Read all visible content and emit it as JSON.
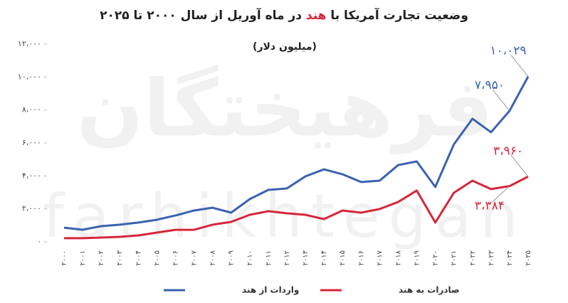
{
  "chart_data": {
    "type": "line",
    "title_parts": [
      "وضعیت تجارت آمریکا با",
      "هند",
      "در ماه آوریل از سال ۲۰۰۰ تا ۲۰۲۵"
    ],
    "subtitle": "(میلیون دلار)",
    "watermark": [
      "فرهیختگان",
      "farhikhtegan"
    ],
    "categories": [
      "۲۰۰۰",
      "۲۰۰۱",
      "۲۰۰۲",
      "۲۰۰۳",
      "۲۰۰۴",
      "۲۰۰۵",
      "۲۰۰۶",
      "۲۰۰۷",
      "۲۰۰۸",
      "۲۰۰۹",
      "۲۰۱۰",
      "۲۰۱۱",
      "۲۰۱۲",
      "۲۰۱۳",
      "۲۰۱۴",
      "۲۰۱۵",
      "۲۰۱۶",
      "۲۰۱۷",
      "۲۰۱۸",
      "۲۰۱۹",
      "۲۰۲۰",
      "۲۰۲۱",
      "۲۰۲۲",
      "۲۰۲۳",
      "۲۰۲۴",
      "۲۰۲۵"
    ],
    "series": [
      {
        "name": "واردات از هند",
        "color": "#3a62b0",
        "values": [
          860,
          735,
          950,
          1040,
          1170,
          1340,
          1600,
          1900,
          2070,
          1770,
          2590,
          3150,
          3240,
          3970,
          4400,
          4100,
          3630,
          3710,
          4660,
          4880,
          3330,
          5920,
          7470,
          6650,
          7950,
          10029
        ],
        "value_labels": [
          null,
          null,
          null,
          null,
          null,
          null,
          null,
          null,
          null,
          null,
          null,
          null,
          null,
          null,
          null,
          null,
          null,
          null,
          null,
          null,
          null,
          null,
          null,
          null,
          "۷،۹۵۰",
          "۱۰،۰۲۹"
        ]
      },
      {
        "name": "صادرات به هند",
        "color": "#d6263a",
        "values": [
          220,
          220,
          260,
          300,
          390,
          560,
          730,
          730,
          1040,
          1210,
          1640,
          1860,
          1730,
          1640,
          1380,
          1900,
          1770,
          1990,
          2420,
          3110,
          1170,
          2980,
          3710,
          3200,
          3384,
          3960
        ],
        "value_labels": [
          null,
          null,
          null,
          null,
          null,
          null,
          null,
          null,
          null,
          null,
          null,
          null,
          null,
          null,
          null,
          null,
          null,
          null,
          null,
          null,
          null,
          null,
          null,
          null,
          "۳،۳۸۴",
          "۳،۹۶۰"
        ]
      }
    ],
    "ylim": [
      0,
      12000
    ],
    "yticks": [
      {
        "value": 0,
        "label": "۰"
      },
      {
        "value": 2000,
        "label": "۲،۰۰۰"
      },
      {
        "value": 4000,
        "label": "۴،۰۰۰"
      },
      {
        "value": 6000,
        "label": "۶،۰۰۰"
      },
      {
        "value": 8000,
        "label": "۸،۰۰۰"
      },
      {
        "value": 10000,
        "label": "۱۰،۰۰۰"
      },
      {
        "value": 12000,
        "label": "۱۲،۰۰۰"
      }
    ],
    "grid": false
  }
}
